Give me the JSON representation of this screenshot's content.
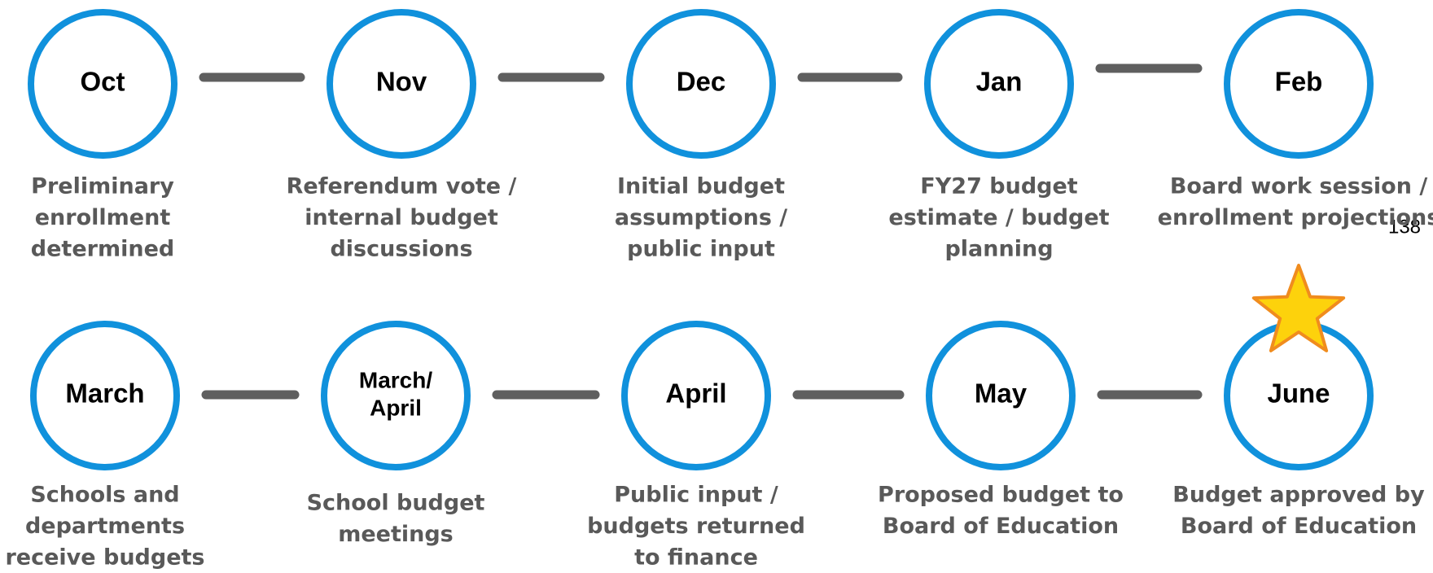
{
  "rows": [
    {
      "nodes": [
        {
          "label": [
            "Oct"
          ],
          "description": [
            "Preliminary",
            "enrollment",
            "determined"
          ]
        },
        {
          "label": [
            "Nov"
          ],
          "description": [
            "Referendum vote /",
            "internal budget",
            "discussions"
          ]
        },
        {
          "label": [
            "Dec"
          ],
          "description": [
            "Initial budget",
            "assumptions /",
            "public input"
          ]
        },
        {
          "label": [
            "Jan"
          ],
          "description": [
            "FY27 budget",
            "estimate / budget",
            "planning"
          ]
        },
        {
          "label": [
            "Feb"
          ],
          "description": [
            "Board work session /",
            "enrollment projections"
          ]
        }
      ]
    },
    {
      "nodes": [
        {
          "label": [
            "March"
          ],
          "description": [
            "Schools and",
            "departments",
            "receive budgets"
          ]
        },
        {
          "label": [
            "March/",
            "April"
          ],
          "description": [
            "School budget",
            "meetings"
          ]
        },
        {
          "label": [
            "April"
          ],
          "description": [
            "Public input /",
            "budgets returned",
            "to finance"
          ]
        },
        {
          "label": [
            "May"
          ],
          "description": [
            "Proposed budget to",
            "Board of Education"
          ]
        },
        {
          "label": [
            "June"
          ],
          "description": [
            "Budget approved by",
            "Board of Education"
          ]
        }
      ]
    }
  ],
  "page_number": "138"
}
